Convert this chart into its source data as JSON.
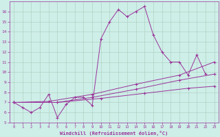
{
  "xlabel": "Windchill (Refroidissement éolien,°C)",
  "background_color": "#ceeee8",
  "line_color": "#993399",
  "grid_color": "#aaccbb",
  "main_x": [
    0,
    1,
    2,
    3,
    4,
    5,
    6,
    7,
    8,
    9,
    10,
    11,
    12,
    13,
    14,
    15,
    16,
    17,
    18,
    19,
    20,
    21,
    22
  ],
  "main_y": [
    7.0,
    6.5,
    6.0,
    6.5,
    7.8,
    5.5,
    6.8,
    7.5,
    7.5,
    6.7,
    13.3,
    15.0,
    16.2,
    15.5,
    16.0,
    16.5,
    13.7,
    12.0,
    11.0,
    11.0,
    9.7,
    11.7,
    9.8
  ],
  "line2_x": [
    0,
    4,
    9,
    14,
    19,
    23
  ],
  "line2_y": [
    7.0,
    7.1,
    7.8,
    8.8,
    9.7,
    11.0
  ],
  "line3_x": [
    0,
    5,
    9,
    14,
    19,
    23
  ],
  "line3_y": [
    7.0,
    7.0,
    7.5,
    8.3,
    9.2,
    9.8
  ],
  "line4_x": [
    0,
    5,
    10,
    15,
    20,
    23
  ],
  "line4_y": [
    7.0,
    7.0,
    7.4,
    7.9,
    8.4,
    8.6
  ],
  "ylim": [
    5,
    17
  ],
  "xlim_min": -0.5,
  "xlim_max": 23.5,
  "yticks": [
    5,
    6,
    7,
    8,
    9,
    10,
    11,
    12,
    13,
    14,
    15,
    16
  ],
  "xticks": [
    0,
    1,
    2,
    3,
    4,
    5,
    6,
    7,
    8,
    9,
    10,
    11,
    12,
    13,
    14,
    15,
    16,
    17,
    18,
    19,
    20,
    21,
    22,
    23
  ]
}
